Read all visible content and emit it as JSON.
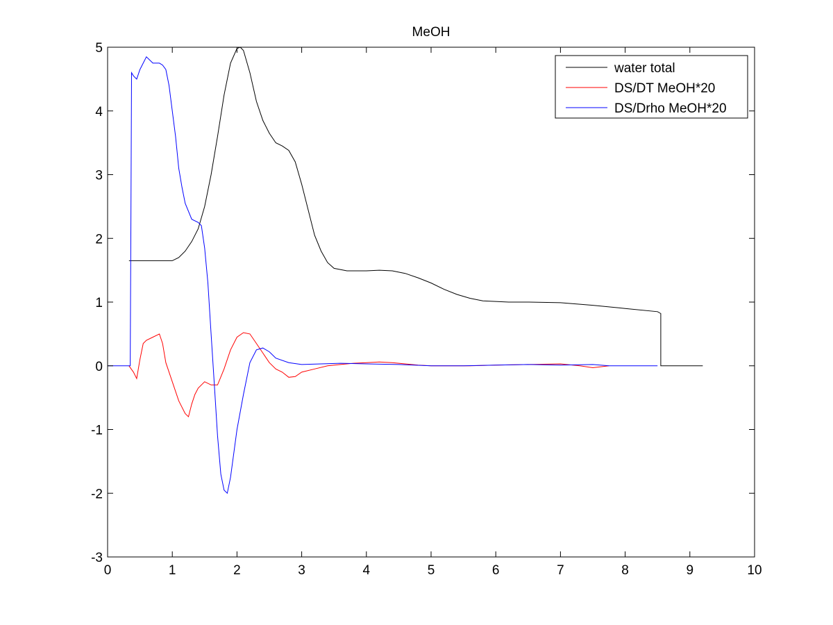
{
  "chart_data": {
    "type": "line",
    "title": "MeOH",
    "xlabel": "",
    "ylabel": "",
    "xlim": [
      0,
      10
    ],
    "ylim": [
      -3,
      5
    ],
    "grid": false,
    "legend_position": "top-right",
    "x_ticks": [
      "0",
      "1",
      "2",
      "3",
      "4",
      "5",
      "6",
      "7",
      "8",
      "9",
      "10"
    ],
    "y_ticks": [
      "-3",
      "-2",
      "-1",
      "0",
      "1",
      "2",
      "3",
      "4",
      "5"
    ],
    "series": [
      {
        "name": "water total",
        "color": "#000000",
        "x": [
          0.33,
          1.0,
          1.1,
          1.2,
          1.3,
          1.4,
          1.5,
          1.6,
          1.7,
          1.8,
          1.9,
          2.0,
          2.05,
          2.1,
          2.2,
          2.3,
          2.4,
          2.5,
          2.6,
          2.7,
          2.8,
          2.9,
          3.0,
          3.1,
          3.2,
          3.3,
          3.4,
          3.5,
          3.7,
          3.9,
          4.0,
          4.2,
          4.4,
          4.6,
          4.8,
          5.0,
          5.2,
          5.4,
          5.6,
          5.8,
          6.0,
          6.2,
          6.5,
          7.0,
          7.5,
          8.0,
          8.5,
          8.55,
          8.55,
          9.2
        ],
        "y": [
          1.65,
          1.65,
          1.7,
          1.8,
          1.95,
          2.15,
          2.5,
          3.0,
          3.6,
          4.25,
          4.75,
          4.98,
          5.0,
          4.95,
          4.6,
          4.15,
          3.85,
          3.65,
          3.5,
          3.45,
          3.38,
          3.2,
          2.85,
          2.45,
          2.05,
          1.8,
          1.62,
          1.53,
          1.49,
          1.49,
          1.49,
          1.5,
          1.49,
          1.45,
          1.38,
          1.3,
          1.2,
          1.12,
          1.06,
          1.02,
          1.01,
          1.0,
          1.0,
          0.99,
          0.95,
          0.9,
          0.85,
          0.82,
          0.0,
          0.0
        ]
      },
      {
        "name": "DS/DT MeOH*20",
        "color": "#ff0000",
        "x": [
          0.33,
          0.4,
          0.45,
          0.5,
          0.55,
          0.6,
          0.7,
          0.8,
          0.85,
          0.9,
          1.0,
          1.1,
          1.2,
          1.25,
          1.3,
          1.35,
          1.4,
          1.5,
          1.6,
          1.7,
          1.8,
          1.9,
          2.0,
          2.1,
          2.2,
          2.3,
          2.4,
          2.5,
          2.6,
          2.7,
          2.8,
          2.9,
          3.0,
          3.2,
          3.4,
          3.6,
          3.8,
          4.0,
          4.2,
          4.4,
          4.6,
          4.8,
          5.0,
          5.3,
          5.6,
          6.0,
          6.5,
          7.0,
          7.3,
          7.5,
          7.75
        ],
        "y": [
          0.0,
          -0.1,
          -0.2,
          0.1,
          0.35,
          0.4,
          0.45,
          0.5,
          0.35,
          0.05,
          -0.25,
          -0.55,
          -0.75,
          -0.8,
          -0.6,
          -0.45,
          -0.35,
          -0.25,
          -0.3,
          -0.3,
          -0.05,
          0.25,
          0.45,
          0.52,
          0.5,
          0.35,
          0.2,
          0.05,
          -0.05,
          -0.1,
          -0.18,
          -0.17,
          -0.1,
          -0.05,
          0.0,
          0.02,
          0.04,
          0.05,
          0.06,
          0.05,
          0.03,
          0.01,
          0.0,
          0.0,
          0.0,
          0.01,
          0.02,
          0.03,
          0.0,
          -0.03,
          0.0
        ]
      },
      {
        "name": "DS/Drho MeOH*20",
        "color": "#0000ff",
        "x": [
          0.0,
          0.35,
          0.36,
          0.37,
          0.4,
          0.45,
          0.5,
          0.55,
          0.6,
          0.65,
          0.7,
          0.8,
          0.85,
          0.9,
          0.95,
          1.0,
          1.05,
          1.1,
          1.15,
          1.2,
          1.3,
          1.4,
          1.45,
          1.5,
          1.55,
          1.6,
          1.65,
          1.7,
          1.75,
          1.8,
          1.85,
          1.9,
          2.0,
          2.1,
          2.2,
          2.3,
          2.4,
          2.5,
          2.6,
          2.8,
          3.0,
          3.3,
          3.6,
          4.0,
          4.5,
          5.0,
          5.5,
          6.0,
          6.5,
          7.0,
          7.5,
          7.75,
          8.5
        ],
        "y": [
          0.0,
          0.0,
          2.3,
          4.6,
          4.55,
          4.5,
          4.65,
          4.75,
          4.85,
          4.8,
          4.75,
          4.75,
          4.72,
          4.65,
          4.4,
          4.0,
          3.6,
          3.1,
          2.8,
          2.55,
          2.3,
          2.25,
          2.2,
          1.85,
          1.3,
          0.5,
          -0.3,
          -1.1,
          -1.7,
          -1.95,
          -2.0,
          -1.75,
          -1.0,
          -0.45,
          0.05,
          0.25,
          0.28,
          0.22,
          0.12,
          0.05,
          0.02,
          0.03,
          0.04,
          0.03,
          0.02,
          0.0,
          0.0,
          0.01,
          0.02,
          0.01,
          0.02,
          0.0,
          0.0
        ]
      }
    ]
  }
}
